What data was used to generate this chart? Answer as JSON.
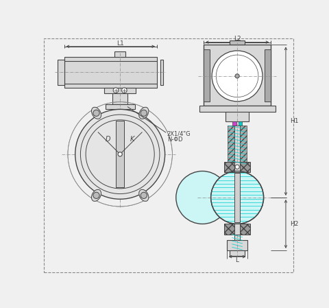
{
  "bg_color": "#f0f0f0",
  "lc": "#444444",
  "dc": "#444444",
  "cyan_line": "#00cccc",
  "cyan_fill": "#ccf5f5",
  "magenta": "#cc44cc",
  "cyan_block": "#00cccc",
  "hatch_gray": "#999999",
  "light_gray": "#d8d8d8",
  "white": "#ffffff",
  "annotation1": "2X1/4\"G",
  "annotation2": "N-ΦD",
  "dim_L1": "L1",
  "dim_L2": "L2",
  "dim_L": "L",
  "dim_H1": "H1",
  "dim_H2": "H2",
  "dim_D": "D",
  "dim_K": "K"
}
